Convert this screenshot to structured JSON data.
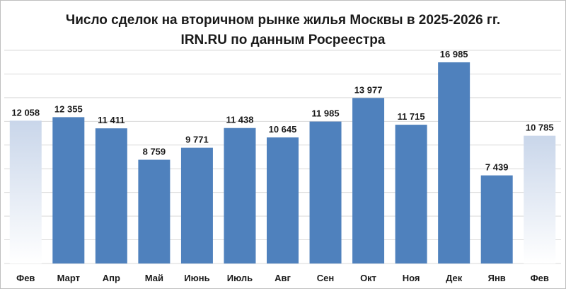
{
  "chart_data": {
    "type": "bar",
    "title": "Число сделок на вторичном рынке жилья Москвы в 2025-2026 гг.",
    "subtitle": "IRN.RU по данным Росреестра",
    "categories": [
      "Фев",
      "Март",
      "Апр",
      "Май",
      "Июнь",
      "Июль",
      "Авг",
      "Сен",
      "Окт",
      "Ноя",
      "Дек",
      "Янв",
      "Фев"
    ],
    "values": [
      12058,
      12355,
      11411,
      8759,
      9771,
      11438,
      10645,
      11985,
      13977,
      11715,
      16985,
      7439,
      10785
    ],
    "value_labels": [
      "12 058",
      "12 355",
      "11 411",
      "8 759",
      "9 771",
      "11 438",
      "10 645",
      "11 985",
      "13 977",
      "11 715",
      "16 985",
      "7 439",
      "10 785"
    ],
    "ylim": [
      0,
      18000
    ],
    "grid": true,
    "colors": {
      "bar": "#4f81bd",
      "highlight_top": "#c9d6ea",
      "grid": "#d9d9d9"
    },
    "highlighted": [
      0,
      12
    ]
  }
}
